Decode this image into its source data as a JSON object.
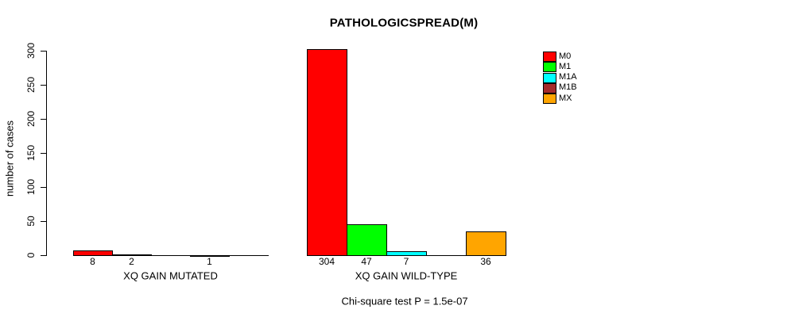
{
  "chart_data": {
    "type": "bar",
    "title": "PATHOLOGICSPREAD(M)",
    "ylabel": "number of cases",
    "xlabel": "",
    "ylim": [
      0,
      300
    ],
    "yticks": [
      0,
      50,
      100,
      150,
      200,
      250,
      300
    ],
    "grid": false,
    "legend_position": "right",
    "categories": [
      "M0",
      "M1",
      "M1A",
      "M1B",
      "MX"
    ],
    "colors": [
      "#FF0000",
      "#00FF00",
      "#00FFFF",
      "#A52A2A",
      "#FFA500"
    ],
    "groups": [
      {
        "label": "XQ GAIN MUTATED",
        "values": [
          8,
          2,
          0,
          1,
          0
        ]
      },
      {
        "label": "XQ GAIN WILD-TYPE",
        "values": [
          304,
          47,
          7,
          0,
          36
        ]
      }
    ],
    "bar_value_labels_shown_for_nonzero": true,
    "footnote": "Chi-square test P = 1.5e-07"
  }
}
